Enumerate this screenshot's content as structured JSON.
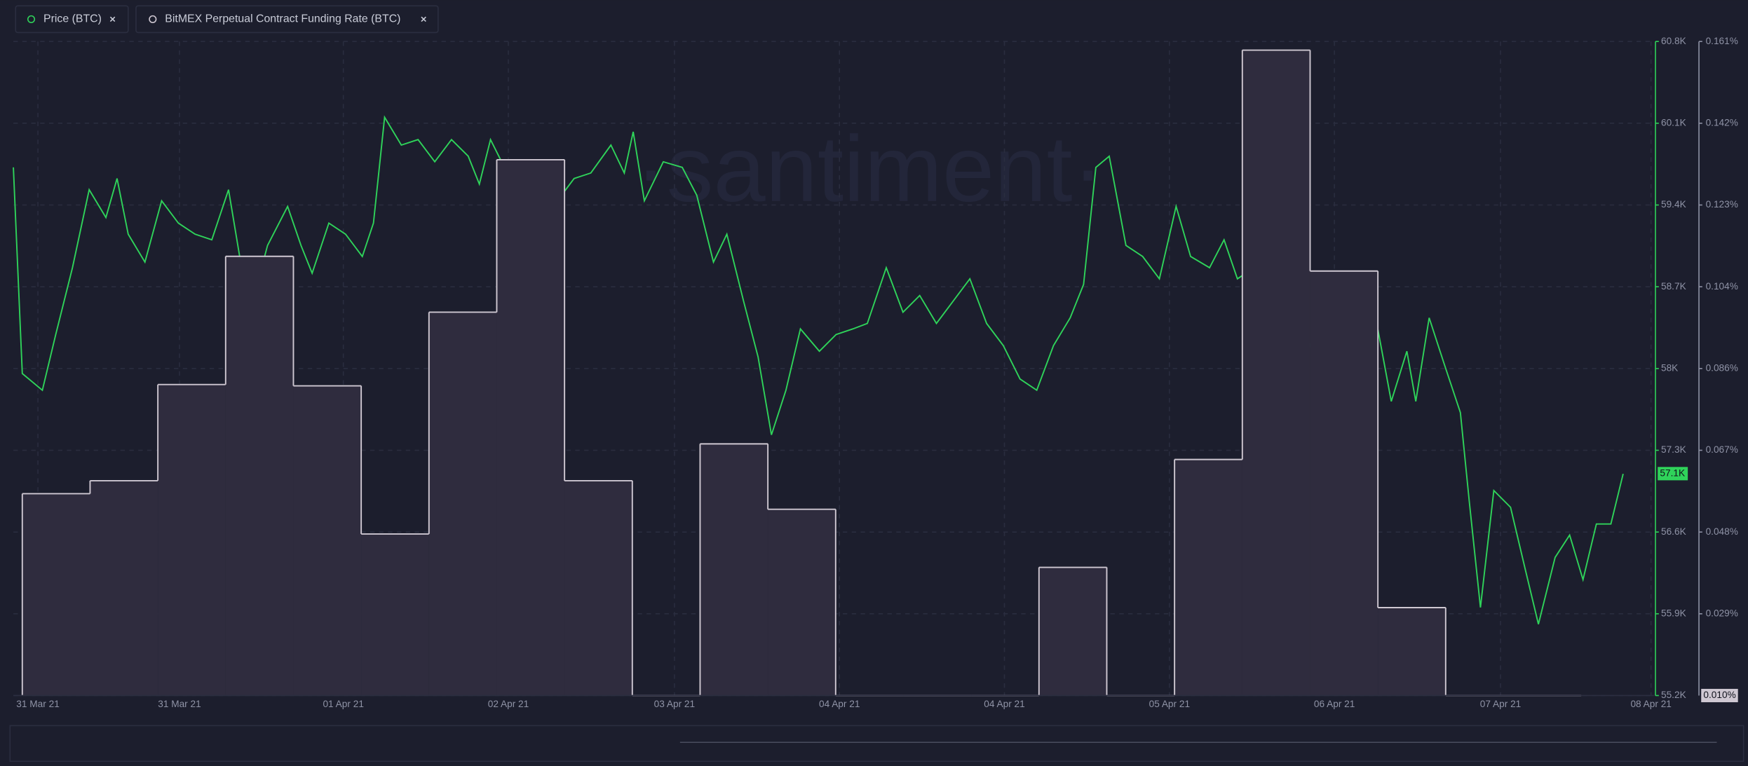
{
  "chart_data": {
    "type": "line",
    "legend": [
      "Price (BTC)",
      "BitMEX Perpetual Contract Funding Rate (BTC)"
    ],
    "watermark": "·santiment·",
    "xlim": [
      12,
      1484
    ],
    "xticks": [
      {
        "value": 34,
        "label": "31 Mar 21"
      },
      {
        "value": 161,
        "label": "31 Mar 21"
      },
      {
        "value": 308,
        "label": "01 Apr 21"
      },
      {
        "value": 456,
        "label": "02 Apr 21"
      },
      {
        "value": 605,
        "label": "03 Apr 21"
      },
      {
        "value": 753,
        "label": "04 Apr 21"
      },
      {
        "value": 901,
        "label": "04 Apr 21"
      },
      {
        "value": 1049,
        "label": "05 Apr 21"
      },
      {
        "value": 1197,
        "label": "06 Apr 21"
      },
      {
        "value": 1346,
        "label": "07 Apr 21"
      },
      {
        "value": 1481,
        "label": "08 Apr 21"
      }
    ],
    "ylim": [
      55200,
      60800
    ],
    "yticks": [
      {
        "value": 55200,
        "label": "55.2K"
      },
      {
        "value": 55900,
        "label": "55.9K"
      },
      {
        "value": 56600,
        "label": "56.6K"
      },
      {
        "value": 57300,
        "label": "57.3K"
      },
      {
        "value": 58000,
        "label": "58K"
      },
      {
        "value": 58700,
        "label": "58.7K"
      },
      {
        "value": 59400,
        "label": "59.4K"
      },
      {
        "value": 60100,
        "label": "60.1K"
      },
      {
        "value": 60800,
        "label": "60.8K"
      }
    ],
    "y2lim": [
      0.01,
      0.161
    ],
    "y2ticks": [
      {
        "value": 0.028875,
        "label": "0.029%"
      },
      {
        "value": 0.04775,
        "label": "0.048%"
      },
      {
        "value": 0.066625,
        "label": "0.067%"
      },
      {
        "value": 0.0855,
        "label": "0.086%"
      },
      {
        "value": 0.104375,
        "label": "0.104%"
      },
      {
        "value": 0.12325,
        "label": "0.123%"
      },
      {
        "value": 0.142125,
        "label": "0.142%"
      },
      {
        "value": 0.161,
        "label": "0.161%"
      }
    ],
    "grid": true,
    "last_price": {
      "value": 57100,
      "label": "57.1K"
    },
    "last_funding": {
      "value": 0.01,
      "label": "0.010%"
    },
    "series": [
      {
        "name": "Price (BTC)",
        "color": "#2fd35a",
        "axis": "y",
        "x": [
          12,
          20,
          38,
          50,
          65,
          80,
          95,
          105,
          115,
          130,
          145,
          160,
          175,
          190,
          205,
          215,
          228,
          240,
          258,
          270,
          280,
          295,
          310,
          325,
          335,
          345,
          360,
          375,
          390,
          405,
          420,
          430,
          440,
          455,
          470,
          485,
          500,
          515,
          530,
          548,
          560,
          568,
          578,
          595,
          612,
          625,
          640,
          652,
          667,
          680,
          692,
          705,
          718,
          735,
          750,
          765,
          778,
          795,
          810,
          825,
          840,
          855,
          870,
          885,
          900,
          915,
          930,
          945,
          960,
          972,
          983,
          995,
          1010,
          1025,
          1040,
          1055,
          1068,
          1085,
          1098,
          1110,
          1125,
          1138,
          1150,
          1163,
          1180,
          1195,
          1210,
          1222,
          1235,
          1248,
          1262,
          1270,
          1282,
          1295,
          1310,
          1318,
          1328,
          1340,
          1355,
          1368,
          1380,
          1395,
          1408,
          1420,
          1432,
          1445,
          1456
        ],
        "values": [
          59722,
          57957,
          57814,
          58291,
          58863,
          59531,
          59293,
          59627,
          59150,
          58911,
          59436,
          59245,
          59150,
          59102,
          59531,
          58959,
          58625,
          59054,
          59388,
          59054,
          58816,
          59245,
          59150,
          58959,
          59245,
          60151,
          59913,
          59960,
          59770,
          59960,
          59818,
          59579,
          59960,
          59674,
          59245,
          59006,
          59436,
          59627,
          59674,
          59913,
          59674,
          60027,
          59436,
          59770,
          59722,
          59484,
          58911,
          59150,
          58577,
          58100,
          57432,
          57814,
          58339,
          58148,
          58291,
          58339,
          58386,
          58863,
          58482,
          58625,
          58386,
          58577,
          58768,
          58386,
          58196,
          57910,
          57814,
          58196,
          58434,
          58720,
          59722,
          59818,
          59054,
          58959,
          58768,
          59388,
          58959,
          58863,
          59102,
          58768,
          58863,
          58625,
          58720,
          57861,
          58339,
          58434,
          58434,
          58005,
          58386,
          57719,
          58148,
          57719,
          58434,
          58053,
          57623,
          56860,
          55954,
          56955,
          56812,
          56288,
          55811,
          56383,
          56574,
          56192,
          56669,
          56669,
          57098
        ]
      },
      {
        "name": "BitMEX Perpetual Contract Funding Rate (BTC)",
        "color": "#cfc8d2",
        "fill": "#2f2c3e",
        "axis": "y2",
        "x": [
          20,
          80.8,
          141.6,
          202.4,
          263.2,
          324,
          384.8,
          445.6,
          506.4,
          567.2,
          628,
          688.8,
          749.6,
          810.4,
          871.2,
          932,
          992.8,
          1053.6,
          1114.4,
          1175.2,
          1236,
          1296.8,
          1357.6
        ],
        "values": [
          0.0566,
          0.0596,
          0.0818,
          0.1114,
          0.0815,
          0.0473,
          0.0985,
          0.1337,
          0.0596,
          0.01,
          0.0681,
          0.053,
          0.01,
          0.01,
          0.01,
          0.0396,
          0.01,
          0.0645,
          0.159,
          0.108,
          0.0303,
          0.01,
          0.01
        ]
      }
    ]
  }
}
